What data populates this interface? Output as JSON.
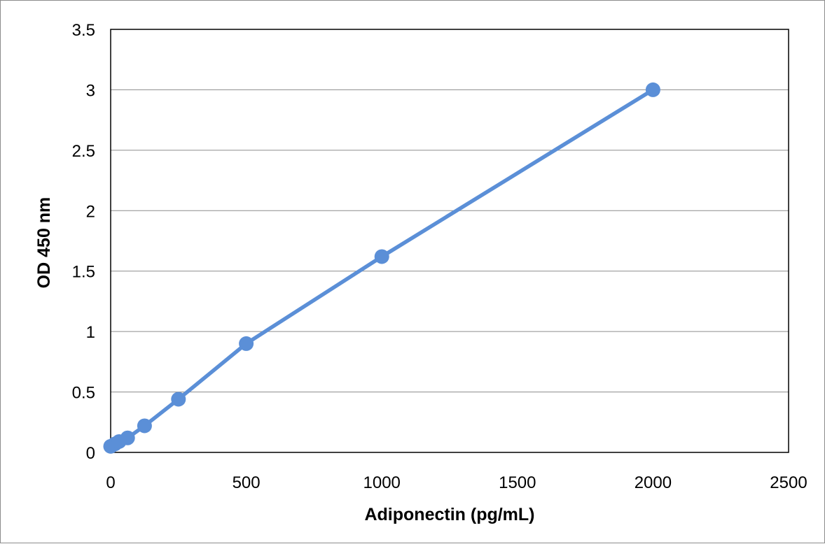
{
  "chart_data": {
    "type": "line",
    "title": "",
    "xlabel": "Adiponectin (pg/mL)",
    "ylabel": "OD 450 nm",
    "xlim": [
      0,
      2500
    ],
    "ylim": [
      0,
      3.5
    ],
    "x_ticks": [
      "0",
      "500",
      "1000",
      "1500",
      "2000",
      "2500"
    ],
    "y_ticks": [
      "0",
      "0.5",
      "1",
      "1.5",
      "2",
      "2.5",
      "3",
      "3.5"
    ],
    "grid": true,
    "legend": "none",
    "series": [
      {
        "color": "#5b8fd7",
        "marker": "circle",
        "x": [
          0,
          15.625,
          31.25,
          62.5,
          125,
          250,
          500,
          1000,
          2000
        ],
        "y": [
          0.05,
          0.07,
          0.09,
          0.12,
          0.22,
          0.44,
          0.9,
          1.62,
          3.0
        ]
      }
    ]
  }
}
